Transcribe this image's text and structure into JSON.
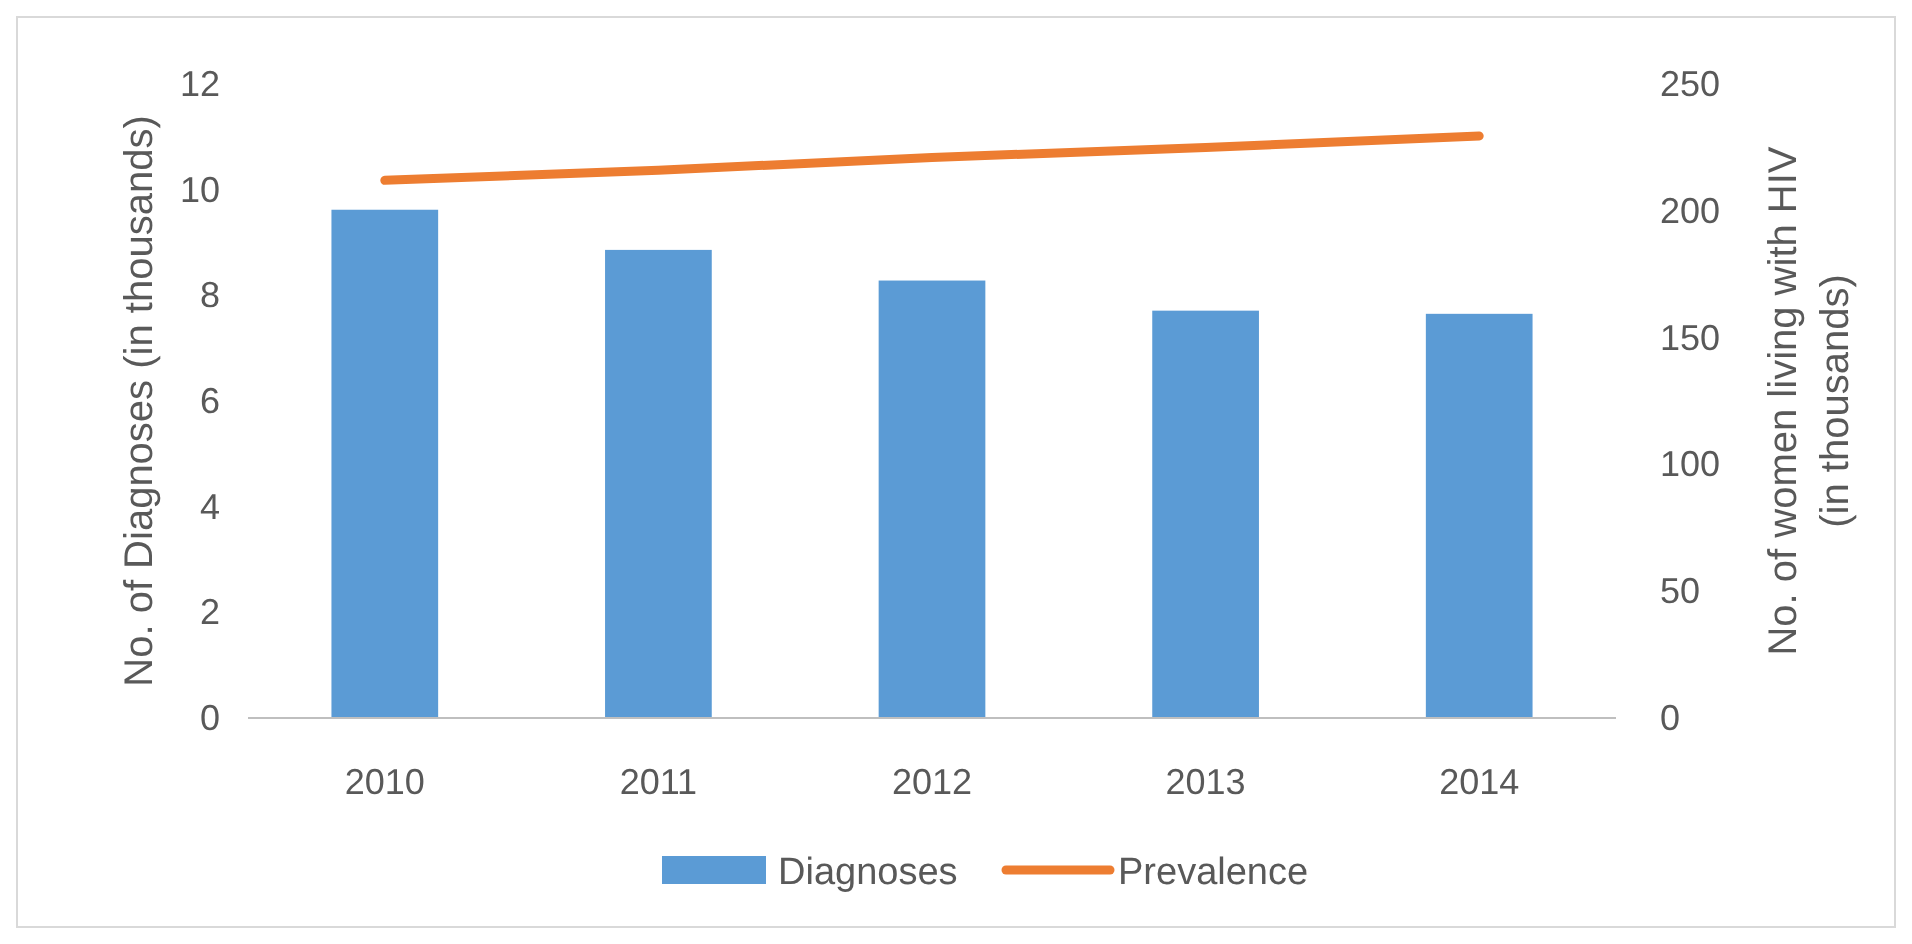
{
  "chart_data": {
    "type": "bar",
    "categories": [
      "2010",
      "2011",
      "2012",
      "2013",
      "2014"
    ],
    "series": [
      {
        "name": "Diagnoses",
        "color": "#5b9bd5",
        "values": [
          9.62,
          8.86,
          8.28,
          7.71,
          7.65
        ]
      },
      {
        "name": "Prevalence",
        "type": "line",
        "axis": "y2",
        "color": "#ed7d31",
        "values": [
          212,
          216,
          221,
          225,
          229.5
        ]
      }
    ],
    "ylabel": "No. of Diagnoses (in thousands)",
    "y2label": "No. of women living with HIV (in thousands)",
    "ylim": [
      0,
      12
    ],
    "yticks": [
      0,
      2,
      4,
      6,
      8,
      10,
      12
    ],
    "y2lim": [
      0,
      250
    ],
    "y2ticks": [
      0,
      50,
      100,
      150,
      200,
      250
    ],
    "grid": false,
    "legend": "bottom",
    "marker": "none",
    "line_style": "solid"
  }
}
